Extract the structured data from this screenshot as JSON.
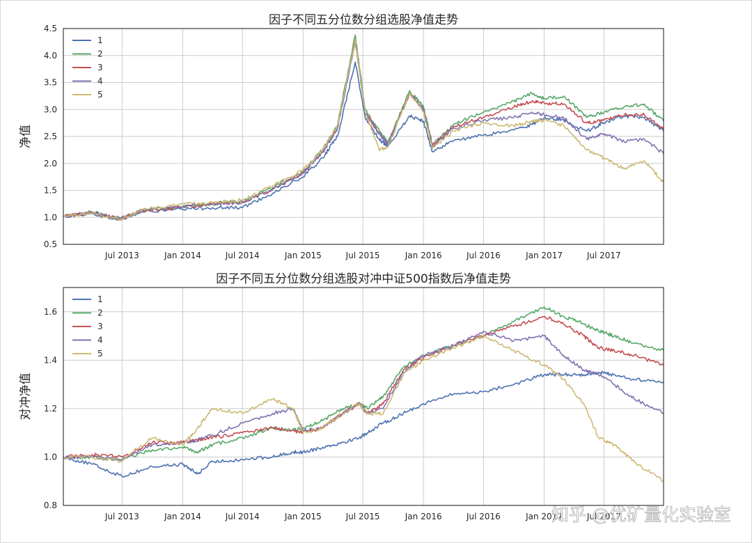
{
  "chart_data": [
    {
      "type": "line",
      "title": "因子不同五分位数分组选股净值走势",
      "xlabel": "",
      "ylabel": "净值",
      "xlim": [
        "2013-01-04",
        "2017-12-29"
      ],
      "ylim": [
        0.5,
        4.5
      ],
      "yticks": [
        "0.5",
        "1.0",
        "1.5",
        "2.0",
        "2.5",
        "3.0",
        "3.5",
        "4.0",
        "4.5"
      ],
      "ytick_values": [
        0.5,
        1.0,
        1.5,
        2.0,
        2.5,
        3.0,
        3.5,
        4.0,
        4.5
      ],
      "xticks": [
        "Jul 2013",
        "Jan 2014",
        "Jul 2014",
        "Jan 2015",
        "Jul 2015",
        "Jan 2016",
        "Jul 2016",
        "Jan 2017",
        "Jul 2017"
      ],
      "xtick_dates": [
        "2013-07-01",
        "2014-01-01",
        "2014-07-01",
        "2015-01-01",
        "2015-07-01",
        "2016-01-01",
        "2016-07-01",
        "2017-01-01",
        "2017-07-01"
      ],
      "grid": true,
      "legend_position": "top-left",
      "x": [
        "2013-01-04",
        "2013-04-01",
        "2013-06-25",
        "2013-09-01",
        "2014-01-01",
        "2014-04-01",
        "2014-07-01",
        "2014-10-01",
        "2015-01-01",
        "2015-03-01",
        "2015-04-15",
        "2015-06-08",
        "2015-07-08",
        "2015-08-20",
        "2015-09-15",
        "2015-11-20",
        "2016-01-01",
        "2016-01-28",
        "2016-04-01",
        "2016-07-01",
        "2016-10-01",
        "2016-11-25",
        "2017-01-01",
        "2017-03-01",
        "2017-05-10",
        "2017-07-01",
        "2017-09-01",
        "2017-11-01",
        "2017-12-29"
      ],
      "series": [
        {
          "name": "1",
          "color": "#4c72b0",
          "values": [
            1.02,
            1.07,
            0.95,
            1.1,
            1.15,
            1.18,
            1.18,
            1.45,
            1.75,
            2.1,
            2.5,
            3.88,
            2.85,
            2.45,
            2.3,
            2.88,
            2.78,
            2.22,
            2.42,
            2.52,
            2.62,
            2.72,
            2.85,
            2.8,
            2.6,
            2.75,
            2.88,
            2.85,
            2.6
          ]
        },
        {
          "name": "2",
          "color": "#55a868",
          "values": [
            1.02,
            1.1,
            0.98,
            1.13,
            1.2,
            1.25,
            1.3,
            1.55,
            1.85,
            2.25,
            2.7,
            4.38,
            3.0,
            2.6,
            2.4,
            3.35,
            3.05,
            2.35,
            2.72,
            2.95,
            3.15,
            3.3,
            3.2,
            3.25,
            2.85,
            2.95,
            3.05,
            3.1,
            2.78
          ]
        },
        {
          "name": "3",
          "color": "#c44e52",
          "values": [
            1.02,
            1.09,
            0.97,
            1.12,
            1.19,
            1.24,
            1.28,
            1.52,
            1.82,
            2.2,
            2.65,
            4.3,
            2.95,
            2.55,
            2.35,
            3.3,
            3.0,
            2.32,
            2.68,
            2.85,
            3.05,
            3.15,
            3.12,
            3.1,
            2.75,
            2.8,
            2.9,
            2.9,
            2.62
          ]
        },
        {
          "name": "4",
          "color": "#8172b2",
          "values": [
            1.02,
            1.09,
            0.97,
            1.13,
            1.2,
            1.25,
            1.28,
            1.52,
            1.82,
            2.22,
            2.65,
            4.25,
            2.95,
            2.55,
            2.35,
            3.3,
            3.0,
            2.3,
            2.65,
            2.8,
            2.85,
            2.95,
            2.9,
            2.85,
            2.45,
            2.55,
            2.4,
            2.45,
            2.18
          ]
        },
        {
          "name": "5",
          "color": "#ccb974",
          "values": [
            1.02,
            1.08,
            0.96,
            1.15,
            1.25,
            1.28,
            1.32,
            1.58,
            1.88,
            2.25,
            2.7,
            4.3,
            2.95,
            2.25,
            2.3,
            3.3,
            2.95,
            2.28,
            2.6,
            2.75,
            2.7,
            2.78,
            2.8,
            2.7,
            2.25,
            2.1,
            1.9,
            2.05,
            1.65
          ]
        }
      ]
    },
    {
      "type": "line",
      "title": "因子不同五分位数分组选股对冲中证500指数后净值走势",
      "xlabel": "",
      "ylabel": "对冲净值",
      "xlim": [
        "2013-01-04",
        "2017-12-29"
      ],
      "ylim": [
        0.8,
        1.7
      ],
      "yticks": [
        "0.8",
        "1.0",
        "1.2",
        "1.4",
        "1.6"
      ],
      "ytick_values": [
        0.8,
        1.0,
        1.2,
        1.4,
        1.6
      ],
      "xticks": [
        "Jul 2013",
        "Jan 2014",
        "Jul 2014",
        "Jan 2015",
        "Jul 2015",
        "Jan 2016",
        "Jul 2016",
        "Jan 2017",
        "Jul 2017"
      ],
      "xtick_dates": [
        "2013-07-01",
        "2014-01-01",
        "2014-07-01",
        "2015-01-01",
        "2015-07-01",
        "2016-01-01",
        "2016-07-01",
        "2017-01-01",
        "2017-07-01"
      ],
      "grid": true,
      "legend_position": "top-left",
      "x": [
        "2013-01-04",
        "2013-04-01",
        "2013-07-01",
        "2013-10-01",
        "2014-01-01",
        "2014-02-15",
        "2014-04-01",
        "2014-07-01",
        "2014-10-01",
        "2014-12-01",
        "2015-01-01",
        "2015-03-01",
        "2015-05-01",
        "2015-06-20",
        "2015-07-15",
        "2015-09-01",
        "2015-11-01",
        "2016-01-01",
        "2016-04-01",
        "2016-07-01",
        "2016-10-01",
        "2017-01-01",
        "2017-03-01",
        "2017-05-01",
        "2017-06-15",
        "2017-08-01",
        "2017-10-01",
        "2017-12-29"
      ],
      "series": [
        {
          "name": "1",
          "color": "#4c72b0",
          "values": [
            1.0,
            0.97,
            0.92,
            0.96,
            0.97,
            0.93,
            0.98,
            0.99,
            1.0,
            1.02,
            1.02,
            1.04,
            1.06,
            1.08,
            1.1,
            1.14,
            1.18,
            1.22,
            1.26,
            1.27,
            1.3,
            1.34,
            1.34,
            1.34,
            1.35,
            1.34,
            1.32,
            1.31
          ]
        },
        {
          "name": "2",
          "color": "#55a868",
          "values": [
            1.0,
            1.0,
            0.99,
            1.03,
            1.04,
            1.02,
            1.05,
            1.08,
            1.12,
            1.11,
            1.12,
            1.15,
            1.2,
            1.22,
            1.2,
            1.25,
            1.37,
            1.42,
            1.46,
            1.5,
            1.56,
            1.62,
            1.58,
            1.55,
            1.52,
            1.5,
            1.47,
            1.44
          ]
        },
        {
          "name": "3",
          "color": "#c44e52",
          "values": [
            1.0,
            1.01,
            1.0,
            1.06,
            1.06,
            1.07,
            1.08,
            1.1,
            1.12,
            1.11,
            1.1,
            1.12,
            1.18,
            1.22,
            1.18,
            1.22,
            1.36,
            1.41,
            1.46,
            1.5,
            1.54,
            1.58,
            1.55,
            1.5,
            1.45,
            1.44,
            1.42,
            1.38
          ]
        },
        {
          "name": "4",
          "color": "#8172b2",
          "values": [
            1.0,
            1.0,
            0.99,
            1.05,
            1.06,
            1.07,
            1.09,
            1.14,
            1.18,
            1.2,
            1.11,
            1.12,
            1.18,
            1.22,
            1.18,
            1.2,
            1.35,
            1.42,
            1.46,
            1.52,
            1.48,
            1.5,
            1.42,
            1.36,
            1.34,
            1.3,
            1.24,
            1.18
          ]
        },
        {
          "name": "5",
          "color": "#ccb974",
          "values": [
            1.0,
            1.0,
            0.98,
            1.08,
            1.05,
            1.12,
            1.2,
            1.18,
            1.24,
            1.2,
            1.1,
            1.12,
            1.18,
            1.22,
            1.18,
            1.18,
            1.34,
            1.4,
            1.45,
            1.5,
            1.44,
            1.38,
            1.32,
            1.22,
            1.08,
            1.05,
            0.98,
            0.9
          ]
        }
      ]
    }
  ],
  "watermark": "知乎 @优矿量化实验室"
}
